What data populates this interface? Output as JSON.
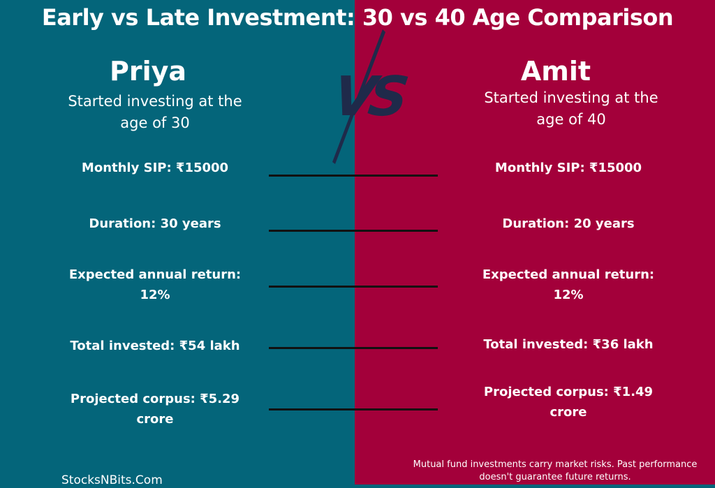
{
  "title": "Early vs Late Investment: 30 vs 40 Age Comparison",
  "vs_label": "VS",
  "colors": {
    "left_panel": "#04657a",
    "right_panel": "#a3003a",
    "vs_mark": "#1f2a4a"
  },
  "left": {
    "name": "Priya",
    "subtitle": "Started investing at the age of 30",
    "rows": [
      "Monthly SIP: ₹15000",
      "Duration: 30 years",
      "Expected annual return: 12%",
      "Total invested: ₹54 lakh",
      "Projected corpus: ₹5.29 crore"
    ]
  },
  "right": {
    "name": "Amit",
    "subtitle": "Started investing at the age of 40",
    "rows": [
      "Monthly SIP: ₹15000",
      "Duration: 20 years",
      "Expected annual return: 12%",
      "Total invested: ₹36 lakh",
      "Projected corpus: ₹1.49 crore"
    ]
  },
  "footer": {
    "brand": "StocksNBits.Com",
    "disclaimer": "Mutual fund investments carry market risks. Past performance doesn't guarantee future returns."
  }
}
